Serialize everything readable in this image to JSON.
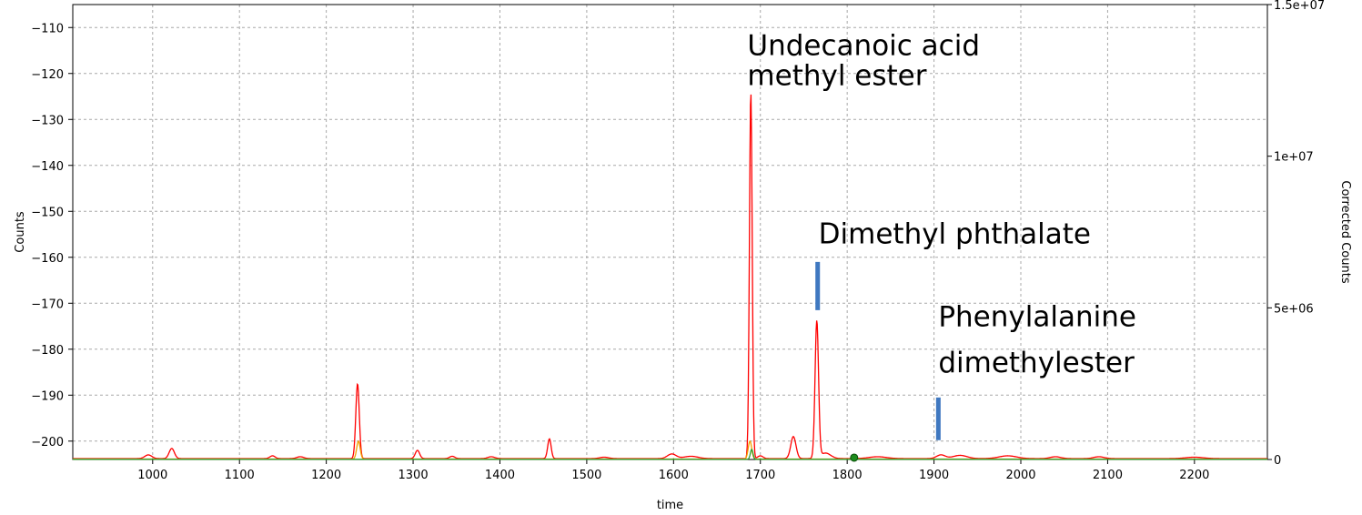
{
  "chart_data": {
    "type": "line",
    "xlabel": "time",
    "ylabel": "Counts",
    "y2label": "Corrected Counts",
    "xlim": [
      908,
      2284
    ],
    "ylim": [
      -204,
      -105
    ],
    "y2lim": [
      0,
      15000000
    ],
    "grid": true,
    "x_ticks": [
      1000,
      1100,
      1200,
      1300,
      1400,
      1500,
      1600,
      1700,
      1800,
      1900,
      2000,
      2100,
      2200
    ],
    "x_tick_labels": [
      "1000",
      "1100",
      "1200",
      "1300",
      "1400",
      "1500",
      "1600",
      "1700",
      "1800",
      "1900",
      "2000",
      "2100",
      "2200"
    ],
    "y_ticks": [
      -110,
      -120,
      -130,
      -140,
      -150,
      -160,
      -170,
      -180,
      -190,
      -200
    ],
    "y_tick_labels": [
      "−110",
      "−120",
      "−130",
      "−140",
      "−150",
      "−160",
      "−170",
      "−180",
      "−190",
      "−200"
    ],
    "y2_ticks": [
      0,
      5000000,
      10000000,
      15000000
    ],
    "y2_tick_labels": [
      "0",
      "5e+06",
      "1e+07",
      "1.5e+07"
    ],
    "series": [
      {
        "color": "#ff0000",
        "baseline": -203.8,
        "peaks": [
          {
            "x": 995,
            "y": -203.0,
            "w": 4
          },
          {
            "x": 1022,
            "y": -201.6,
            "w": 3
          },
          {
            "x": 1138,
            "y": -203.2,
            "w": 3
          },
          {
            "x": 1170,
            "y": -203.4,
            "w": 4
          },
          {
            "x": 1236,
            "y": -187.5,
            "w": 2
          },
          {
            "x": 1305,
            "y": -202.0,
            "w": 2.5
          },
          {
            "x": 1345,
            "y": -203.3,
            "w": 3
          },
          {
            "x": 1390,
            "y": -203.4,
            "w": 4
          },
          {
            "x": 1457,
            "y": -199.5,
            "w": 2
          },
          {
            "x": 1520,
            "y": -203.5,
            "w": 5
          },
          {
            "x": 1598,
            "y": -202.8,
            "w": 5
          },
          {
            "x": 1620,
            "y": -203.3,
            "w": 8
          },
          {
            "x": 1689,
            "y": -124.0,
            "w": 1.6
          },
          {
            "x": 1700,
            "y": -203.2,
            "w": 3
          },
          {
            "x": 1738,
            "y": -199.0,
            "w": 3
          },
          {
            "x": 1765,
            "y": -174.0,
            "w": 2
          },
          {
            "x": 1775,
            "y": -202.6,
            "w": 6
          },
          {
            "x": 1835,
            "y": -203.4,
            "w": 10
          },
          {
            "x": 1908,
            "y": -203.0,
            "w": 5
          },
          {
            "x": 1930,
            "y": -203.1,
            "w": 8
          },
          {
            "x": 1985,
            "y": -203.2,
            "w": 10
          },
          {
            "x": 2040,
            "y": -203.4,
            "w": 6
          },
          {
            "x": 2090,
            "y": -203.4,
            "w": 6
          },
          {
            "x": 2200,
            "y": -203.5,
            "w": 10
          }
        ]
      },
      {
        "color": "#f0a000",
        "baseline": -203.9,
        "peaks": [
          {
            "x": 1237,
            "y": -200.0,
            "w": 2
          },
          {
            "x": 1688,
            "y": -200.0,
            "w": 2
          }
        ]
      },
      {
        "color": "#2a9d2a",
        "baseline": -203.95,
        "peaks": [
          {
            "x": 1690,
            "y": -201.8,
            "w": 1.5
          }
        ]
      }
    ],
    "markers": [
      {
        "x": 1808,
        "y": -203.6,
        "color": "#1d8c1d"
      }
    ],
    "annotations": [
      {
        "text": "Undecanoic acid",
        "x": 1685,
        "y": -116.0
      },
      {
        "text": "methyl ester",
        "x": 1685,
        "y": -122.5
      },
      {
        "text": "Dimethyl phthalate",
        "x": 1767,
        "y": -157.0
      },
      {
        "text": "Phenylalanine",
        "x": 1905,
        "y": -175.0
      },
      {
        "text": "dimethylester",
        "x": 1905,
        "y": -185.0
      }
    ],
    "indicator_bars": [
      {
        "x": 1766,
        "y1": -161.0,
        "y2": -171.5,
        "color": "#3f78c0"
      },
      {
        "x": 1905,
        "y1": -190.5,
        "y2": -199.8,
        "color": "#3f78c0"
      }
    ]
  }
}
